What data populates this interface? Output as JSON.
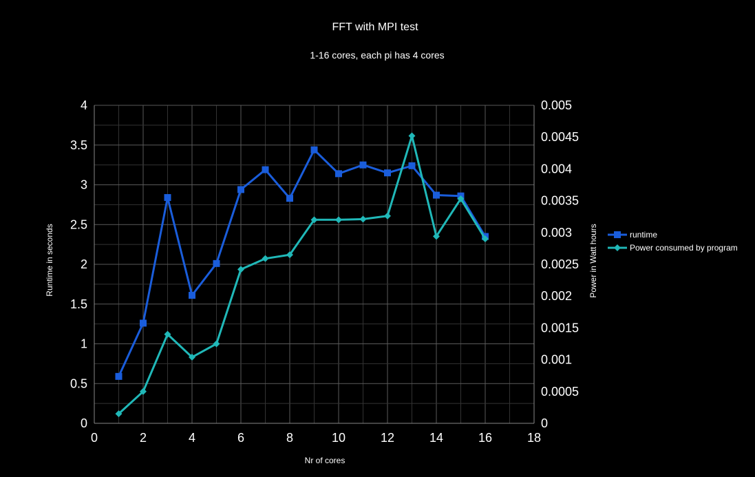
{
  "chart_data": {
    "type": "line",
    "title": "FFT with MPI test",
    "subtitle": "1-16 cores, each pi has 4 cores",
    "xlabel": "Nr of cores",
    "ylabel": "Runtime in seconds",
    "y2label": "Power in Watt hours",
    "xlim": [
      0,
      18
    ],
    "ylim": [
      0,
      4
    ],
    "y2lim": [
      0,
      0.005
    ],
    "x_ticks": [
      "0",
      "2",
      "4",
      "6",
      "8",
      "10",
      "12",
      "14",
      "16",
      "18"
    ],
    "y_ticks": [
      "0",
      "0.5",
      "1",
      "1.5",
      "2",
      "2.5",
      "3",
      "3.5",
      "4"
    ],
    "y2_ticks": [
      "0",
      "0.0005",
      "0.001",
      "0.0015",
      "0.002",
      "0.0025",
      "0.003",
      "0.0035",
      "0.004",
      "0.0045",
      "0.005"
    ],
    "grid": true,
    "legend_position": "right",
    "x": [
      1,
      2,
      3,
      4,
      5,
      6,
      7,
      8,
      9,
      10,
      11,
      12,
      13,
      14,
      15,
      16
    ],
    "series": [
      {
        "name": "runtime",
        "axis": "left",
        "marker": "square",
        "color": "#1a5ddb",
        "values": [
          0.59,
          1.26,
          2.84,
          1.61,
          2.01,
          2.94,
          3.19,
          2.83,
          3.44,
          3.14,
          3.25,
          3.15,
          3.24,
          2.87,
          2.86,
          2.35
        ]
      },
      {
        "name": "Power consumed by program",
        "axis": "right",
        "marker": "diamond",
        "color": "#20b8b8",
        "values": [
          0.00015,
          0.0005,
          0.0014,
          0.00104,
          0.00125,
          0.00242,
          0.00259,
          0.00265,
          0.0032,
          0.0032,
          0.00321,
          0.00326,
          0.00452,
          0.00294,
          0.00353,
          0.0029
        ]
      }
    ]
  }
}
